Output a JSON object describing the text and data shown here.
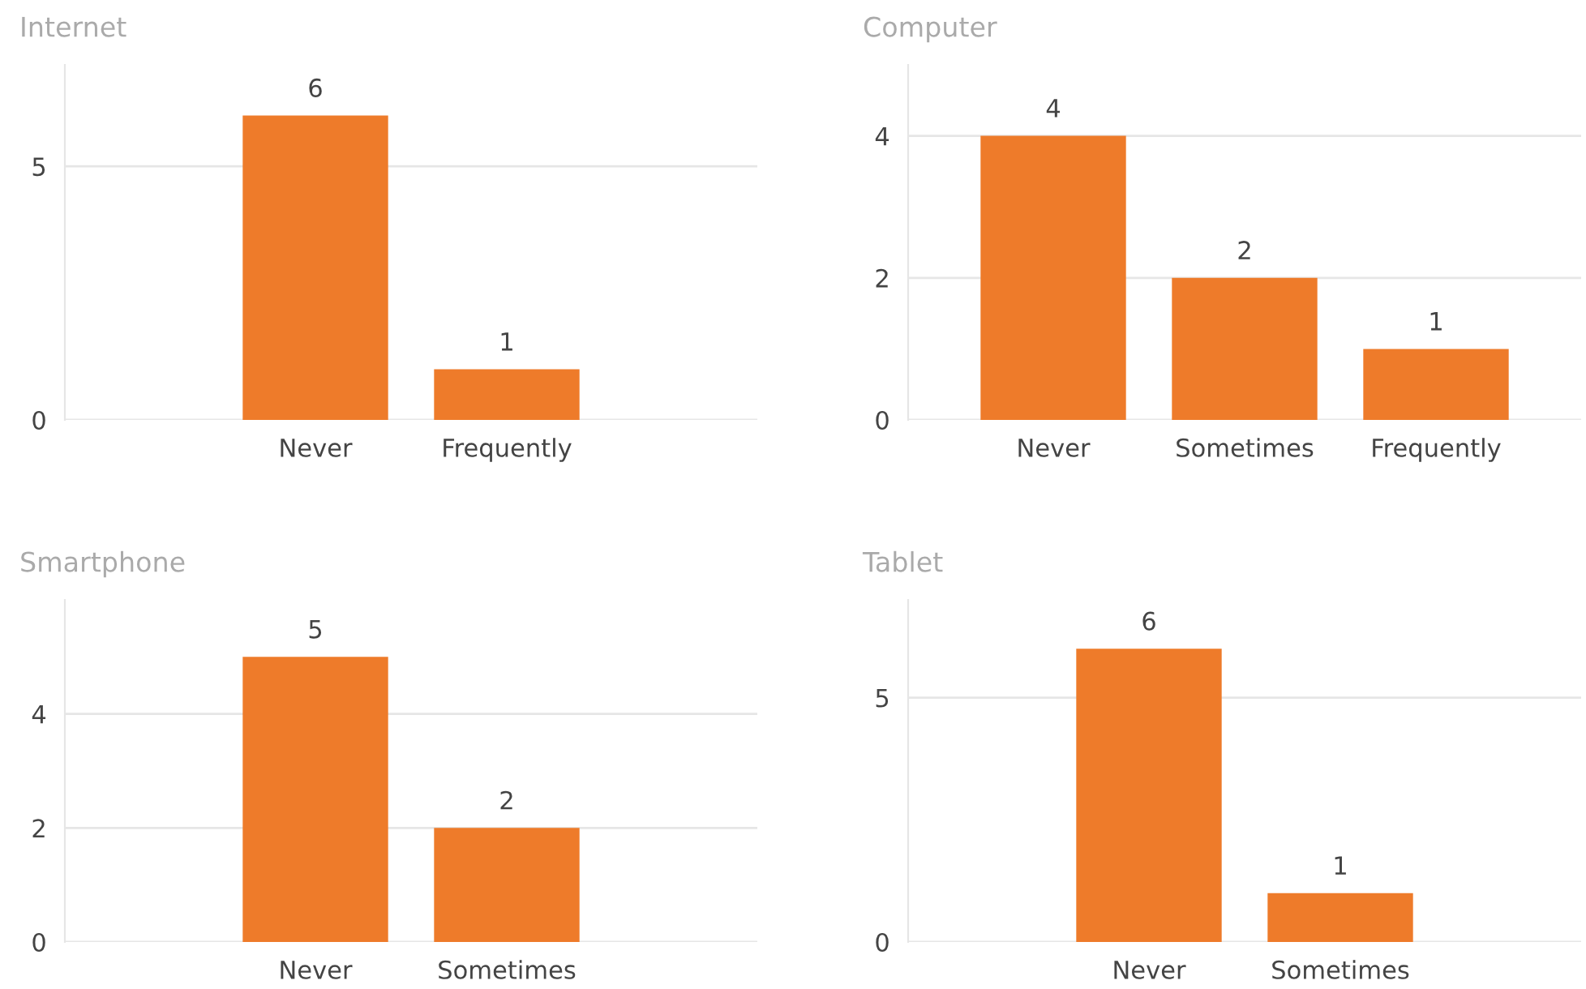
{
  "chart_data": [
    {
      "type": "bar",
      "title": "Internet",
      "categories": [
        "Never",
        "Frequently"
      ],
      "values": [
        6,
        1
      ],
      "color": "#ee7b2a",
      "ylim": [
        0,
        7
      ],
      "yticks": [
        0,
        5
      ],
      "grid": "y",
      "data_labels": true,
      "legend": false
    },
    {
      "type": "bar",
      "title": "Computer",
      "categories": [
        "Never",
        "Sometimes",
        "Frequently"
      ],
      "values": [
        4,
        2,
        1
      ],
      "color": "#ee7b2a",
      "ylim": [
        0,
        5
      ],
      "yticks": [
        0,
        2,
        4
      ],
      "grid": "y",
      "data_labels": true,
      "legend": false
    },
    {
      "type": "bar",
      "title": "Smartphone",
      "categories": [
        "Never",
        "Sometimes"
      ],
      "values": [
        5,
        2
      ],
      "color": "#ee7b2a",
      "ylim": [
        0,
        6
      ],
      "yticks": [
        0,
        2,
        4
      ],
      "grid": "y",
      "data_labels": true,
      "legend": false
    },
    {
      "type": "bar",
      "title": "Tablet",
      "categories": [
        "Never",
        "Sometimes"
      ],
      "values": [
        6,
        1
      ],
      "color": "#ee7b2a",
      "ylim": [
        0,
        7
      ],
      "yticks": [
        0,
        5
      ],
      "grid": "y",
      "data_labels": true,
      "legend": false
    }
  ]
}
